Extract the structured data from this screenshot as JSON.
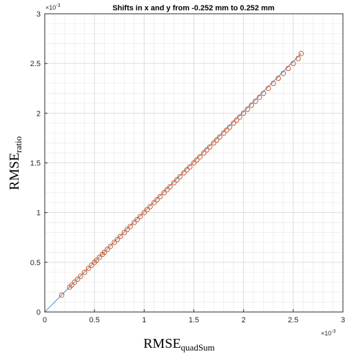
{
  "chart_data": {
    "type": "scatter",
    "title": "Shifts in x and y from -0.252 mm to 0.252 mm",
    "xlabel_main": "RMSE",
    "xlabel_sub": "quadSum",
    "ylabel_main": "RMSE",
    "ylabel_sub": "ratio",
    "x_exponent": "×10",
    "x_exponent_power": "-3",
    "y_exponent": "×10",
    "y_exponent_power": "-3",
    "xlim": [
      0,
      3
    ],
    "ylim": [
      0,
      3
    ],
    "xticks": [
      "0",
      "0.5",
      "1",
      "1.5",
      "2",
      "2.5",
      "3"
    ],
    "yticks": [
      "0",
      "0.5",
      "1",
      "1.5",
      "2",
      "2.5",
      "3"
    ],
    "grid": true,
    "minor_grid": true,
    "reference_line": {
      "x": [
        0,
        2.58
      ],
      "y": [
        0,
        2.6
      ],
      "color": "#5b9bd5"
    },
    "marker_color": "#d9541a",
    "series": [
      {
        "marker": "circle",
        "x": [
          0.17,
          0.25,
          0.27,
          0.3,
          0.33,
          0.36,
          0.4,
          0.44,
          0.47,
          0.5,
          0.52,
          0.55,
          0.58,
          0.6,
          0.63,
          0.66,
          0.7,
          0.73,
          0.76,
          0.8,
          0.83,
          0.86,
          0.9,
          0.93,
          0.96,
          1.0,
          1.03,
          1.06,
          1.1,
          1.13,
          1.16,
          1.2,
          1.23,
          1.26,
          1.3,
          1.33,
          1.36,
          1.4,
          1.43,
          1.46,
          1.5,
          1.53,
          1.56,
          1.6,
          1.63,
          1.66,
          1.7,
          1.73,
          1.76,
          1.8,
          1.83,
          1.86,
          1.9,
          1.93,
          1.96,
          2.0,
          2.04,
          2.08,
          2.12,
          2.16,
          2.2,
          2.25,
          2.3,
          2.35,
          2.4,
          2.45,
          2.5,
          2.55,
          2.58
        ],
        "y": [
          0.17,
          0.25,
          0.27,
          0.3,
          0.33,
          0.36,
          0.4,
          0.44,
          0.47,
          0.5,
          0.52,
          0.55,
          0.58,
          0.6,
          0.63,
          0.66,
          0.7,
          0.73,
          0.76,
          0.8,
          0.83,
          0.86,
          0.9,
          0.93,
          0.96,
          1.0,
          1.03,
          1.06,
          1.1,
          1.13,
          1.16,
          1.2,
          1.23,
          1.26,
          1.3,
          1.33,
          1.36,
          1.4,
          1.43,
          1.46,
          1.5,
          1.53,
          1.56,
          1.6,
          1.63,
          1.66,
          1.7,
          1.73,
          1.76,
          1.8,
          1.83,
          1.86,
          1.9,
          1.93,
          1.96,
          2.0,
          2.04,
          2.08,
          2.12,
          2.16,
          2.2,
          2.25,
          2.3,
          2.35,
          2.4,
          2.45,
          2.5,
          2.55,
          2.6
        ]
      }
    ]
  }
}
